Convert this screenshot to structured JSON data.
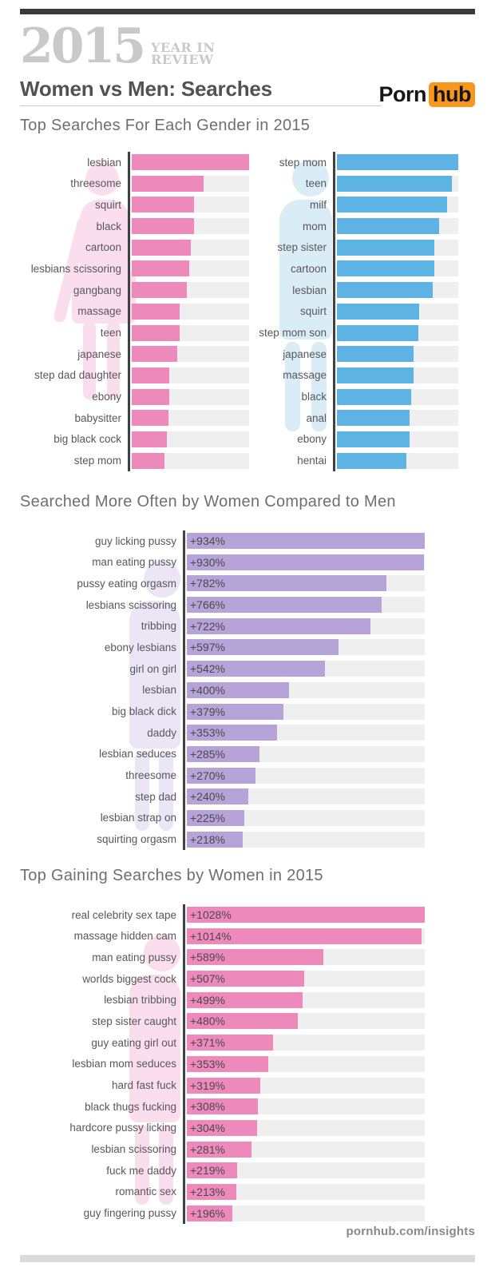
{
  "header": {
    "year": "2015",
    "year_suffix_line1": "YEAR IN",
    "year_suffix_line2": "REVIEW",
    "title": "Women vs Men: Searches",
    "brand": {
      "porn": "Porn",
      "hub": "hub"
    }
  },
  "footer": {
    "url": "pornhub.com/insights"
  },
  "colors": {
    "women_pink": "#ee8abb",
    "men_blue": "#5cb3e4",
    "purple": "#b6a3d8",
    "brand_orange": "#f7971e",
    "bar_track": "#f0eff0",
    "axis": "#414143",
    "silhouette_pink": "#fbdeed",
    "silhouette_blue": "#daecf6",
    "silhouette_purple": "#ebe5f6"
  },
  "chart_data": [
    {
      "type": "bar",
      "title": "Top Searches For Each Gender in 2015",
      "note": "bar lengths are relative popularity (no numeric labels shown); values are % of longest bar",
      "panels": [
        {
          "gender": "women",
          "color": "#ee8abb",
          "max": 100,
          "items": [
            {
              "label": "lesbian",
              "value": 100
            },
            {
              "label": "threesome",
              "value": 61
            },
            {
              "label": "squirt",
              "value": 53
            },
            {
              "label": "black",
              "value": 53
            },
            {
              "label": "cartoon",
              "value": 50
            },
            {
              "label": "lesbians scissoring",
              "value": 49
            },
            {
              "label": "gangbang",
              "value": 47
            },
            {
              "label": "massage",
              "value": 41
            },
            {
              "label": "teen",
              "value": 41
            },
            {
              "label": "japanese",
              "value": 39
            },
            {
              "label": "step dad daughter",
              "value": 32
            },
            {
              "label": "ebony",
              "value": 32
            },
            {
              "label": "babysitter",
              "value": 31
            },
            {
              "label": "big black cock",
              "value": 30
            },
            {
              "label": "step mom",
              "value": 28
            }
          ]
        },
        {
          "gender": "men",
          "color": "#5cb3e4",
          "max": 100,
          "items": [
            {
              "label": "step mom",
              "value": 100
            },
            {
              "label": "teen",
              "value": 95
            },
            {
              "label": "milf",
              "value": 91
            },
            {
              "label": "mom",
              "value": 84
            },
            {
              "label": "step sister",
              "value": 80
            },
            {
              "label": "cartoon",
              "value": 80
            },
            {
              "label": "lesbian",
              "value": 79
            },
            {
              "label": "squirt",
              "value": 68
            },
            {
              "label": "step mom son",
              "value": 67
            },
            {
              "label": "japanese",
              "value": 63
            },
            {
              "label": "massage",
              "value": 63
            },
            {
              "label": "black",
              "value": 61
            },
            {
              "label": "anal",
              "value": 60
            },
            {
              "label": "ebony",
              "value": 60
            },
            {
              "label": "hentai",
              "value": 57
            }
          ]
        }
      ]
    },
    {
      "type": "bar",
      "title": "Searched More Often by Women Compared to Men",
      "color": "#b6a3d8",
      "max": 934,
      "items": [
        {
          "label": "guy licking pussy",
          "value": 934,
          "display": "+934%"
        },
        {
          "label": "man eating pussy",
          "value": 930,
          "display": "+930%"
        },
        {
          "label": "pussy eating orgasm",
          "value": 782,
          "display": "+782%"
        },
        {
          "label": "lesbians scissoring",
          "value": 766,
          "display": "+766%"
        },
        {
          "label": "tribbing",
          "value": 722,
          "display": "+722%"
        },
        {
          "label": "ebony lesbians",
          "value": 597,
          "display": "+597%"
        },
        {
          "label": "girl on girl",
          "value": 542,
          "display": "+542%"
        },
        {
          "label": "lesbian",
          "value": 400,
          "display": "+400%"
        },
        {
          "label": "big black dick",
          "value": 379,
          "display": "+379%"
        },
        {
          "label": "daddy",
          "value": 353,
          "display": "+353%"
        },
        {
          "label": "lesbian seduces",
          "value": 285,
          "display": "+285%"
        },
        {
          "label": "threesome",
          "value": 270,
          "display": "+270%"
        },
        {
          "label": "step dad",
          "value": 240,
          "display": "+240%"
        },
        {
          "label": "lesbian strap on",
          "value": 225,
          "display": "+225%"
        },
        {
          "label": "squirting orgasm",
          "value": 218,
          "display": "+218%"
        }
      ]
    },
    {
      "type": "bar",
      "title": "Top Gaining Searches by Women in 2015",
      "color": "#ee8abb",
      "max": 1028,
      "items": [
        {
          "label": "real celebrity sex tape",
          "value": 1028,
          "display": "+1028%"
        },
        {
          "label": "massage hidden cam",
          "value": 1014,
          "display": "+1014%"
        },
        {
          "label": "man eating pussy",
          "value": 589,
          "display": "+589%"
        },
        {
          "label": "worlds biggest cock",
          "value": 507,
          "display": "+507%"
        },
        {
          "label": "lesbian tribbing",
          "value": 499,
          "display": "+499%"
        },
        {
          "label": "step sister caught",
          "value": 480,
          "display": "+480%"
        },
        {
          "label": "guy eating girl out",
          "value": 371,
          "display": "+371%"
        },
        {
          "label": "lesbian mom seduces",
          "value": 353,
          "display": "+353%"
        },
        {
          "label": "hard fast fuck",
          "value": 319,
          "display": "+319%"
        },
        {
          "label": "black thugs fucking",
          "value": 308,
          "display": "+308%"
        },
        {
          "label": "hardcore pussy licking",
          "value": 304,
          "display": "+304%"
        },
        {
          "label": "lesbian scissoring",
          "value": 281,
          "display": "+281%"
        },
        {
          "label": "fuck me daddy",
          "value": 219,
          "display": "+219%"
        },
        {
          "label": "romantic sex",
          "value": 213,
          "display": "+213%"
        },
        {
          "label": "guy fingering pussy",
          "value": 196,
          "display": "+196%"
        }
      ]
    }
  ]
}
